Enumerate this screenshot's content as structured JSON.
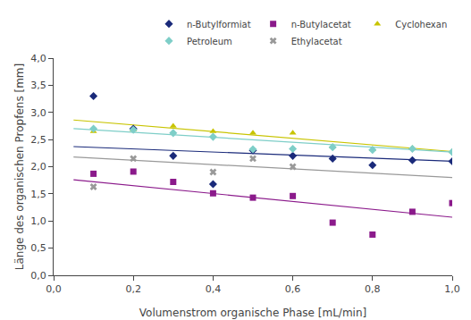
{
  "chart_data": {
    "type": "scatter",
    "xlabel": "Volumenstrom organische Phase [mL/min]",
    "ylabel": "Länge des organischen Propfens [mm]",
    "xlim": [
      0.0,
      1.0
    ],
    "ylim": [
      0.0,
      4.0
    ],
    "xticks": [
      {
        "value": 0.0,
        "label": "0,0"
      },
      {
        "value": 0.2,
        "label": "0,2"
      },
      {
        "value": 0.4,
        "label": "0,4"
      },
      {
        "value": 0.6,
        "label": "0,6"
      },
      {
        "value": 0.8,
        "label": "0,8"
      },
      {
        "value": 1.0,
        "label": "1,0"
      }
    ],
    "yticks": [
      {
        "value": 0.0,
        "label": "0,0"
      },
      {
        "value": 0.5,
        "label": "0,5"
      },
      {
        "value": 1.0,
        "label": "1,0"
      },
      {
        "value": 1.5,
        "label": "1,5"
      },
      {
        "value": 2.0,
        "label": "2,0"
      },
      {
        "value": 2.5,
        "label": "2,5"
      },
      {
        "value": 3.0,
        "label": "3,0"
      },
      {
        "value": 3.5,
        "label": "3,5"
      },
      {
        "value": 4.0,
        "label": "4,0"
      }
    ],
    "grid": false,
    "legend": "upper right",
    "series": [
      {
        "name": "n-Butylformiat",
        "color": "#1a2a7a",
        "marker": "diamond",
        "x": [
          0.1,
          0.2,
          0.3,
          0.4,
          0.5,
          0.6,
          0.7,
          0.8,
          0.9,
          1.0
        ],
        "values": [
          3.3,
          2.7,
          2.2,
          1.68,
          2.3,
          2.2,
          2.15,
          2.03,
          2.12,
          2.1
        ],
        "trend": {
          "x": [
            0.05,
            1.0
          ],
          "values": [
            2.37,
            2.1
          ]
        }
      },
      {
        "name": "n-Butylacetat",
        "color": "#8b1a8b",
        "marker": "square",
        "x": [
          0.1,
          0.2,
          0.3,
          0.4,
          0.5,
          0.6,
          0.7,
          0.8,
          0.9,
          1.0
        ],
        "values": [
          1.87,
          1.91,
          1.72,
          1.51,
          1.43,
          1.46,
          0.97,
          0.75,
          1.17,
          1.33
        ],
        "trend": {
          "x": [
            0.05,
            1.0
          ],
          "values": [
            1.76,
            1.07
          ]
        }
      },
      {
        "name": "Cyclohexan",
        "color": "#c8c400",
        "marker": "triangle-up",
        "x": [
          0.1,
          0.2,
          0.3,
          0.4,
          0.5,
          0.6,
          0.7,
          0.8,
          0.9,
          1.0
        ],
        "values": [
          2.65,
          2.68,
          2.75,
          2.65,
          2.62,
          2.62,
          2.37,
          2.32,
          2.34,
          2.28
        ],
        "trend": {
          "x": [
            0.05,
            1.0
          ],
          "values": [
            2.86,
            2.28
          ]
        }
      },
      {
        "name": "Petroleum",
        "color": "#7ecec8",
        "marker": "diamond",
        "x": [
          0.1,
          0.2,
          0.3,
          0.4,
          0.5,
          0.6,
          0.7,
          0.8,
          0.9,
          1.0
        ],
        "values": [
          2.7,
          2.68,
          2.62,
          2.55,
          2.32,
          2.33,
          2.36,
          2.31,
          2.33,
          2.27
        ],
        "trend": {
          "x": [
            0.05,
            1.0
          ],
          "values": [
            2.7,
            2.27
          ]
        }
      },
      {
        "name": "Ethylacetat",
        "color": "#999999",
        "marker": "x",
        "x": [
          0.1,
          0.2,
          0.4,
          0.5,
          0.6
        ],
        "values": [
          1.63,
          2.15,
          1.9,
          2.15,
          2.0
        ],
        "trend": {
          "x": [
            0.05,
            1.0
          ],
          "values": [
            2.18,
            1.8
          ]
        }
      }
    ]
  }
}
